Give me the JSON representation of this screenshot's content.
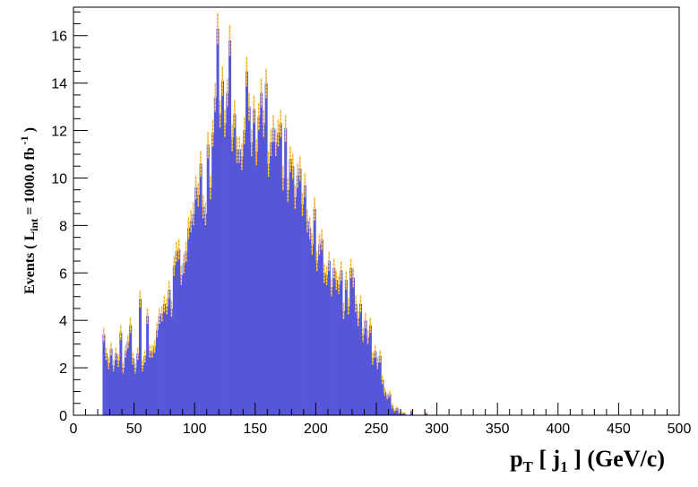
{
  "chart_data": {
    "type": "bar",
    "style": "histogram",
    "x_axis": {
      "range": [
        0,
        500
      ],
      "major_ticks": [
        0,
        50,
        100,
        150,
        200,
        250,
        300,
        350,
        400,
        450,
        500
      ],
      "tick_labels": [
        "0",
        "50",
        "100",
        "150",
        "200",
        "250",
        "300",
        "350",
        "400",
        "450",
        "500"
      ]
    },
    "y_axis": {
      "range": [
        0,
        17.2
      ],
      "major_ticks": [
        0,
        2,
        4,
        6,
        8,
        10,
        12,
        14,
        16
      ],
      "tick_labels": [
        "0",
        "2",
        "4",
        "6",
        "8",
        "10",
        "12",
        "14",
        "16"
      ]
    },
    "grid": false,
    "legend": "none",
    "bin_width": 2,
    "x_start": 24,
    "values": [
      3.4,
      2.6,
      2.2,
      2.8,
      2.1,
      2.6,
      2.3,
      3.5,
      2.0,
      2.7,
      3.1,
      3.8,
      2.4,
      2.0,
      2.6,
      4.9,
      2.1,
      2.5,
      4.2,
      2.7,
      2.7,
      2.9,
      3.6,
      4.2,
      4.3,
      4.7,
      4.6,
      5.3,
      4.5,
      6.3,
      6.9,
      7.0,
      5.9,
      6.4,
      6.9,
      7.9,
      8.2,
      8.5,
      9.6,
      9.3,
      10.6,
      8.8,
      8.5,
      11.4,
      9.6,
      11.9,
      13.4,
      16.3,
      12.7,
      14.1,
      12.3,
      13.6,
      15.8,
      11.7,
      12.7,
      11.2,
      11.2,
      10.9,
      12.0,
      14.5,
      13.0,
      11.5,
      12.9,
      11.1,
      12.6,
      13.6,
      12.3,
      14.0,
      10.6,
      11.5,
      12.1,
      11.5,
      11.9,
      12.3,
      10.0,
      12.1,
      9.5,
      10.8,
      10.5,
      9.2,
      10.1,
      10.4,
      8.9,
      9.7,
      8.2,
      7.9,
      7.2,
      8.7,
      6.5,
      7.2,
      7.4,
      6.0,
      5.9,
      6.5,
      5.4,
      6.2,
      5.7,
      5.5,
      6.1,
      4.4,
      5.7,
      4.6,
      6.2,
      5.8,
      4.7,
      4.1,
      4.7,
      3.4,
      4.0,
      3.3,
      3.8,
      2.4,
      2.7,
      2.2,
      2.5,
      1.5,
      1.0,
      0.8,
      0.9,
      0.4,
      0.2,
      0.3,
      0.1,
      0.1,
      0.1,
      0.0,
      0.0,
      0.2,
      0.0,
      0.0,
      0.0,
      0.0,
      0.0,
      0.1
    ],
    "ylabel": {
      "prefix": "Events  ( L",
      "sub": "int",
      "middle": " = 1000.0 fb",
      "sup": " -1",
      "suffix": " )"
    },
    "xlabel": {
      "p": "p",
      "p_sub": "T",
      "mid": " [ j",
      "j_sub": "1",
      "suffix": " ] (GeV/c)"
    },
    "colors": {
      "fill": "#5656d8",
      "error_line": "#f09a1a",
      "error_dash": "#f5e070",
      "axis": "#000000"
    }
  }
}
